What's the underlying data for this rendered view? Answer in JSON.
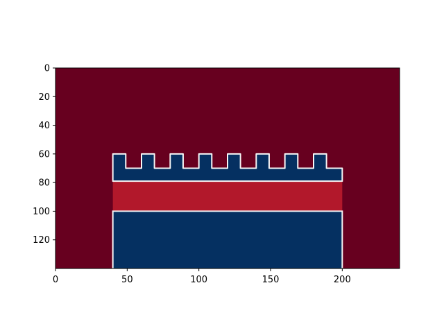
{
  "chart_data": {
    "type": "heatmap",
    "title": "",
    "xlabel": "",
    "ylabel": "",
    "xlim": [
      0,
      240
    ],
    "ylim": [
      140,
      0
    ],
    "y_axis_inverted": true,
    "xticks": [
      0,
      50,
      100,
      150,
      200
    ],
    "yticks": [
      0,
      20,
      40,
      60,
      80,
      100,
      120
    ],
    "colormap": "RdBu",
    "colors": {
      "background": "#67001f",
      "band": "#b2182b",
      "shape": "#053061",
      "edge": "#f7f7f7"
    },
    "regions": [
      {
        "name": "background",
        "value": "high",
        "x": [
          0,
          240
        ],
        "y": [
          0,
          140
        ]
      },
      {
        "name": "battlement-shape",
        "value": "low",
        "x": [
          40,
          200
        ],
        "y": [
          60,
          79
        ],
        "merlon_x_starts": [
          40,
          60,
          80,
          100,
          120,
          140,
          160,
          180
        ],
        "merlon_width": 9,
        "merlon_top_y": 60,
        "base_top_y": 70
      },
      {
        "name": "middle-band",
        "value": "mid-high",
        "x": [
          40,
          200
        ],
        "y": [
          79,
          100
        ]
      },
      {
        "name": "lower-block",
        "value": "low",
        "x": [
          40,
          200
        ],
        "y": [
          100,
          140
        ]
      }
    ]
  }
}
